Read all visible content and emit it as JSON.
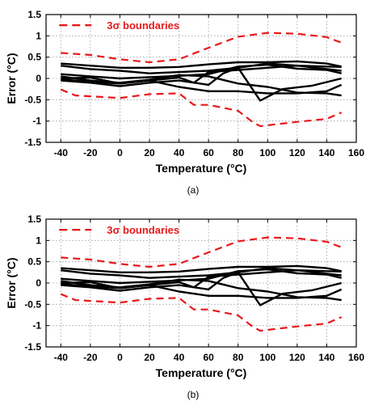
{
  "chart_data": [
    {
      "type": "line",
      "caption": "(a)",
      "xlabel": "Temperature (°C)",
      "ylabel": "Error (°C)",
      "xlim": [
        -50,
        160
      ],
      "ylim": [
        -1.5,
        1.5
      ],
      "xticks": [
        -40,
        -20,
        0,
        20,
        40,
        60,
        80,
        100,
        120,
        140,
        160
      ],
      "yticks": [
        -1.5,
        -1,
        -0.5,
        0,
        0.5,
        1,
        1.5
      ],
      "xtick_labels": [
        "-40",
        "-20",
        "0",
        "20",
        "40",
        "60",
        "80",
        "100",
        "120",
        "140",
        "160"
      ],
      "ytick_labels": [
        "-1.5",
        "-1",
        "-0.5",
        "0",
        "0.5",
        "1",
        "1.5"
      ],
      "grid": true,
      "legend_position": "top-left",
      "legend": "3σ boundaries",
      "boundary_color": "#e8191c",
      "curve_color": "#000000",
      "boundaries": [
        {
          "x": [
            -40,
            -20,
            0,
            20,
            40,
            60,
            80,
            100,
            120,
            140,
            150
          ],
          "y": [
            0.6,
            0.55,
            0.45,
            0.38,
            0.45,
            0.72,
            0.98,
            1.07,
            1.05,
            0.97,
            0.84
          ]
        },
        {
          "x": [
            -40,
            -30,
            -20,
            0,
            20,
            40,
            50,
            60,
            80,
            90,
            95,
            100,
            120,
            140,
            150
          ],
          "y": [
            -0.26,
            -0.4,
            -0.42,
            -0.46,
            -0.37,
            -0.35,
            -0.62,
            -0.62,
            -0.76,
            -1.03,
            -1.12,
            -1.1,
            -1.02,
            -0.95,
            -0.8
          ]
        }
      ],
      "series": [
        {
          "x": [
            -40,
            -20,
            0,
            20,
            40,
            60,
            80,
            100,
            120,
            140,
            150
          ],
          "y": [
            0.35,
            0.3,
            0.25,
            0.25,
            0.27,
            0.33,
            0.38,
            0.38,
            0.4,
            0.35,
            0.28
          ]
        },
        {
          "x": [
            -40,
            -20,
            0,
            20,
            40,
            60,
            80,
            100,
            120,
            140,
            150
          ],
          "y": [
            0.3,
            0.22,
            0.18,
            0.12,
            0.15,
            0.18,
            0.25,
            0.35,
            0.3,
            0.28,
            0.27
          ]
        },
        {
          "x": [
            -40,
            -20,
            0,
            20,
            40,
            60,
            80,
            100,
            120,
            140,
            150
          ],
          "y": [
            0.1,
            0.05,
            0.0,
            0.03,
            0.06,
            0.1,
            0.28,
            0.32,
            0.23,
            0.2,
            0.12
          ]
        },
        {
          "x": [
            -40,
            -20,
            0,
            20,
            40,
            60,
            80,
            100,
            120,
            140,
            150
          ],
          "y": [
            0.05,
            -0.05,
            -0.1,
            -0.03,
            0.08,
            0.05,
            -0.12,
            -0.2,
            -0.33,
            -0.35,
            -0.4
          ]
        },
        {
          "x": [
            -40,
            -20,
            0,
            20,
            40,
            60,
            70,
            80,
            95,
            110,
            130,
            150
          ],
          "y": [
            -0.05,
            -0.1,
            -0.18,
            -0.1,
            -0.05,
            -0.15,
            0.12,
            0.25,
            -0.52,
            -0.25,
            -0.17,
            0.0
          ]
        },
        {
          "x": [
            -40,
            -20,
            0,
            20,
            40,
            60,
            80,
            100,
            120,
            140,
            150
          ],
          "y": [
            -0.02,
            -0.08,
            -0.12,
            -0.05,
            -0.2,
            -0.3,
            -0.3,
            -0.35,
            -0.35,
            -0.3,
            -0.15
          ]
        },
        {
          "x": [
            -40,
            -20,
            0,
            20,
            40,
            50,
            60,
            80,
            100,
            120,
            140,
            150
          ],
          "y": [
            0.0,
            0.02,
            -0.12,
            -0.05,
            0.02,
            -0.1,
            0.15,
            0.2,
            0.25,
            0.3,
            0.22,
            0.18
          ]
        }
      ]
    },
    {
      "type": "line",
      "caption": "(b)",
      "xlabel": "Temperature (°C)",
      "ylabel": "Error (°C)",
      "xlim": [
        -50,
        160
      ],
      "ylim": [
        -1.5,
        1.5
      ],
      "xticks": [
        -40,
        -20,
        0,
        20,
        40,
        60,
        80,
        100,
        120,
        140,
        160
      ],
      "yticks": [
        -1.5,
        -1,
        -0.5,
        0,
        0.5,
        1,
        1.5
      ],
      "xtick_labels": [
        "-40",
        "-20",
        "0",
        "20",
        "40",
        "60",
        "80",
        "100",
        "120",
        "140",
        "160"
      ],
      "ytick_labels": [
        "-1.5",
        "-1",
        "-0.5",
        "0",
        "0.5",
        "1",
        "1.5"
      ],
      "grid": true,
      "legend_position": "top-left",
      "legend": "3σ boundaries",
      "boundary_color": "#e8191c",
      "curve_color": "#000000",
      "boundaries": [
        {
          "x": [
            -40,
            -20,
            0,
            20,
            40,
            60,
            80,
            100,
            120,
            140,
            150
          ],
          "y": [
            0.6,
            0.55,
            0.45,
            0.38,
            0.45,
            0.72,
            0.98,
            1.07,
            1.05,
            0.97,
            0.84
          ]
        },
        {
          "x": [
            -40,
            -30,
            -20,
            0,
            20,
            40,
            50,
            60,
            80,
            90,
            95,
            100,
            120,
            140,
            150
          ],
          "y": [
            -0.26,
            -0.4,
            -0.42,
            -0.46,
            -0.37,
            -0.35,
            -0.62,
            -0.62,
            -0.76,
            -1.03,
            -1.12,
            -1.1,
            -1.02,
            -0.95,
            -0.8
          ]
        }
      ],
      "series": [
        {
          "x": [
            -40,
            -20,
            0,
            20,
            40,
            60,
            80,
            100,
            120,
            140,
            150
          ],
          "y": [
            0.35,
            0.3,
            0.25,
            0.25,
            0.27,
            0.33,
            0.38,
            0.38,
            0.4,
            0.35,
            0.28
          ]
        },
        {
          "x": [
            -40,
            -20,
            0,
            20,
            40,
            60,
            80,
            100,
            120,
            140,
            150
          ],
          "y": [
            0.3,
            0.22,
            0.18,
            0.12,
            0.15,
            0.18,
            0.25,
            0.35,
            0.3,
            0.28,
            0.27
          ]
        },
        {
          "x": [
            -40,
            -20,
            0,
            20,
            40,
            60,
            80,
            100,
            120,
            140,
            150
          ],
          "y": [
            0.1,
            0.05,
            0.0,
            0.03,
            0.06,
            0.1,
            0.28,
            0.32,
            0.23,
            0.2,
            0.12
          ]
        },
        {
          "x": [
            -40,
            -20,
            0,
            20,
            40,
            60,
            80,
            100,
            120,
            140,
            150
          ],
          "y": [
            0.05,
            -0.05,
            -0.1,
            -0.03,
            0.08,
            0.05,
            -0.12,
            -0.2,
            -0.33,
            -0.35,
            -0.4
          ]
        },
        {
          "x": [
            -40,
            -20,
            0,
            20,
            40,
            60,
            70,
            80,
            95,
            110,
            130,
            150
          ],
          "y": [
            -0.05,
            -0.1,
            -0.18,
            -0.1,
            -0.05,
            -0.15,
            0.12,
            0.25,
            -0.52,
            -0.25,
            -0.17,
            0.0
          ]
        },
        {
          "x": [
            -40,
            -20,
            0,
            20,
            40,
            60,
            80,
            100,
            120,
            140,
            150
          ],
          "y": [
            -0.02,
            -0.08,
            -0.12,
            -0.05,
            -0.2,
            -0.3,
            -0.3,
            -0.35,
            -0.35,
            -0.3,
            -0.15
          ]
        },
        {
          "x": [
            -40,
            -20,
            0,
            20,
            40,
            50,
            60,
            80,
            100,
            120,
            140,
            150
          ],
          "y": [
            0.0,
            0.02,
            -0.12,
            -0.05,
            0.02,
            -0.1,
            0.15,
            0.2,
            0.25,
            0.3,
            0.22,
            0.18
          ]
        }
      ]
    }
  ]
}
